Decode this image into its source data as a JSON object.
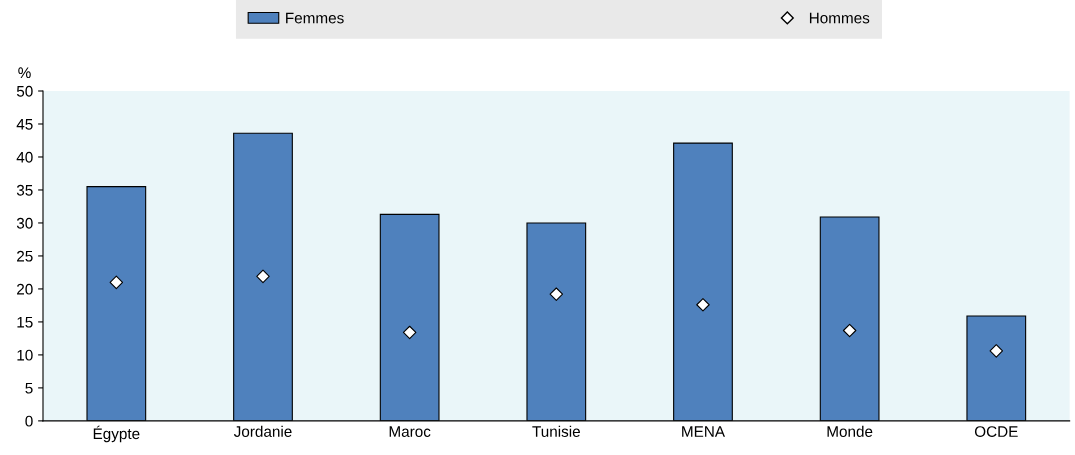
{
  "chart_data": {
    "type": "bar",
    "ylabel": "%",
    "categories": [
      "Égypte",
      "Jordanie",
      "Maroc",
      "Tunisie",
      "MENA",
      "Monde",
      "OCDE"
    ],
    "series": [
      {
        "name": "Femmes",
        "color": "#4f81bd",
        "values": [
          35.5,
          43.6,
          31.3,
          30.0,
          42.1,
          30.9,
          15.9
        ]
      },
      {
        "name": "Hommes",
        "type": "scatter",
        "color": "#ffffff",
        "marker": "diamond",
        "values": [
          21.0,
          21.9,
          13.4,
          19.2,
          17.6,
          13.7,
          10.6
        ]
      }
    ],
    "ylim": [
      0,
      50
    ],
    "yticks": [
      0,
      5,
      10,
      15,
      20,
      25,
      30,
      35,
      40,
      45,
      50
    ],
    "grid": false,
    "legend": "top"
  }
}
